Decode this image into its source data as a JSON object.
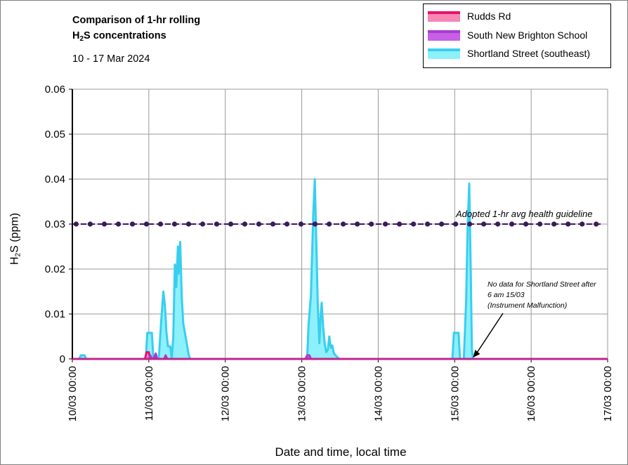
{
  "title_line1": "Comparison of 1-hr rolling",
  "title_line2_pre": "H",
  "title_line2_sub": "2",
  "title_line2_post": "S concentrations",
  "subtitle": "10 - 17 Mar 2024",
  "ylabel_pre": "H",
  "ylabel_sub": "2",
  "ylabel_post": "S (ppm)",
  "xlabel": "Date and time, local time",
  "guideline_label": "Adopted 1-hr avg health guideline",
  "annotation": {
    "line1": "No data for Shortland Street after",
    "line2": "6 am 15/03",
    "line3": "(Instrument Malfunction)"
  },
  "legend": [
    {
      "label": "Rudds Rd",
      "fill": "#f887b3",
      "stroke": "#e8126e"
    },
    {
      "label": "South New Brighton School",
      "fill": "#c860e6",
      "stroke": "#a83bd0"
    },
    {
      "label": "Shortland Street (southeast)",
      "fill": "#8ef0fb",
      "stroke": "#38cef0"
    }
  ],
  "chart_data": {
    "type": "area",
    "title": "Comparison of 1-hr rolling H2S concentrations",
    "subtitle": "10 - 17 Mar 2024",
    "xlabel": "Date and time, local time",
    "ylabel": "H2S (ppm)",
    "x_unit": "days since 10/03 00:00",
    "xlim": [
      0,
      7
    ],
    "ylim": [
      0,
      0.06
    ],
    "yticks": [
      "0",
      "0.01",
      "0.02",
      "0.03",
      "0.04",
      "0.05",
      "0.06"
    ],
    "xticks": [
      "10/03 00:00",
      "11/03 00:00",
      "12/03 00:00",
      "13/03 00:00",
      "14/03 00:00",
      "15/03 00:00",
      "16/03 00:00",
      "17/03 00:00"
    ],
    "grid": true,
    "legend_position": "top-right",
    "guideline": {
      "name": "Adopted 1-hr avg health guideline",
      "value": 0.03,
      "color": "#3b1a5c"
    },
    "series": [
      {
        "name": "Shortland Street (southeast)",
        "fill": "#8ef0fb",
        "stroke": "#38cef0",
        "points": [
          [
            0,
            0
          ],
          [
            0.09,
            0
          ],
          [
            0.11,
            0.0008
          ],
          [
            0.16,
            0.0008
          ],
          [
            0.18,
            0
          ],
          [
            0.96,
            0
          ],
          [
            0.98,
            0.0058
          ],
          [
            1.04,
            0.0058
          ],
          [
            1.06,
            0
          ],
          [
            1.13,
            0
          ],
          [
            1.16,
            0.008
          ],
          [
            1.19,
            0.015
          ],
          [
            1.21,
            0.012
          ],
          [
            1.23,
            0.006
          ],
          [
            1.25,
            0.0028
          ],
          [
            1.28,
            0.0028
          ],
          [
            1.3,
            0
          ],
          [
            1.32,
            0.005
          ],
          [
            1.34,
            0.021
          ],
          [
            1.36,
            0.016
          ],
          [
            1.38,
            0.025
          ],
          [
            1.39,
            0.019
          ],
          [
            1.41,
            0.026
          ],
          [
            1.43,
            0.014
          ],
          [
            1.45,
            0.008
          ],
          [
            1.48,
            0.005
          ],
          [
            1.5,
            0.003
          ],
          [
            1.52,
            0.001
          ],
          [
            1.54,
            0
          ],
          [
            3.07,
            0
          ],
          [
            3.09,
            0.008
          ],
          [
            3.12,
            0.014
          ],
          [
            3.15,
            0.032
          ],
          [
            3.17,
            0.04
          ],
          [
            3.19,
            0.026
          ],
          [
            3.21,
            0.012
          ],
          [
            3.23,
            0.0035
          ],
          [
            3.25,
            0.0105
          ],
          [
            3.26,
            0.0125
          ],
          [
            3.28,
            0.007
          ],
          [
            3.3,
            0.0035
          ],
          [
            3.32,
            0.0015
          ],
          [
            3.34,
            0.002
          ],
          [
            3.36,
            0.005
          ],
          [
            3.38,
            0.0025
          ],
          [
            3.4,
            0.003
          ],
          [
            3.42,
            0.0012
          ],
          [
            3.46,
            0.0005
          ],
          [
            3.49,
            0
          ],
          [
            4.97,
            0
          ],
          [
            4.99,
            0.0058
          ],
          [
            5.05,
            0.0058
          ],
          [
            5.07,
            0
          ],
          [
            5.12,
            0
          ],
          [
            5.15,
            0.013
          ],
          [
            5.17,
            0.03
          ],
          [
            5.19,
            0.039
          ],
          [
            5.21,
            0.02
          ],
          [
            5.225,
            0.002
          ],
          [
            5.24,
            0
          ]
        ]
      },
      {
        "name": "Rudds Rd",
        "fill": "#f887b3",
        "stroke": "#e8126e",
        "points": [
          [
            0,
            0
          ],
          [
            0.95,
            0
          ],
          [
            0.97,
            0.0015
          ],
          [
            1.0,
            0.0015
          ],
          [
            1.02,
            0
          ],
          [
            1.06,
            0
          ],
          [
            1.08,
            0.0008
          ],
          [
            1.1,
            0
          ],
          [
            7,
            0
          ]
        ]
      },
      {
        "name": "South New Brighton School",
        "fill": "#c860e6",
        "stroke": "#a83bd0",
        "points": [
          [
            0,
            0
          ],
          [
            1.0,
            0
          ],
          [
            1.02,
            0.0008
          ],
          [
            1.04,
            0
          ],
          [
            1.07,
            0
          ],
          [
            1.09,
            0.0012
          ],
          [
            1.11,
            0
          ],
          [
            1.2,
            0
          ],
          [
            1.22,
            0.0008
          ],
          [
            1.24,
            0
          ],
          [
            3.05,
            0
          ],
          [
            3.07,
            0.0008
          ],
          [
            3.1,
            0.0008
          ],
          [
            3.12,
            0
          ],
          [
            7,
            0
          ]
        ]
      }
    ]
  }
}
